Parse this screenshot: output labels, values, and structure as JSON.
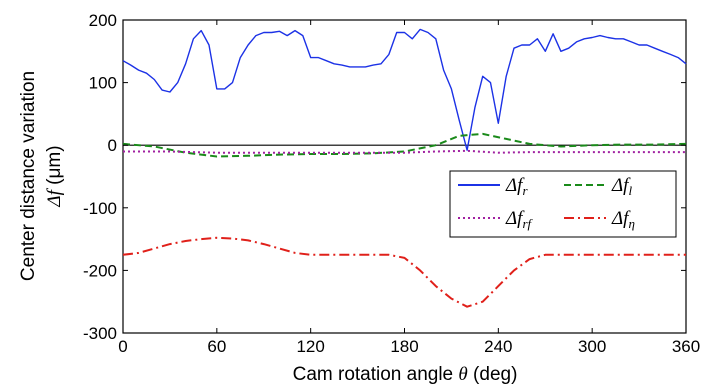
{
  "chart_data": {
    "type": "line",
    "xlabel_main": "Cam rotation angle ",
    "xlabel_symbol": "θ",
    "xlabel_unit": " (deg)",
    "ylabel_line1": "Center distance variation",
    "ylabel_symbol": "Δf",
    "ylabel_unit": " (μm)",
    "xlim": [
      0,
      360
    ],
    "ylim": [
      -300,
      200
    ],
    "xticks": [
      "0",
      "60",
      "120",
      "180",
      "240",
      "300",
      "360"
    ],
    "yticks": [
      "200",
      "100",
      "0",
      "-100",
      "-200",
      "-300"
    ],
    "grid": false,
    "legend_position": "lower-right",
    "reference_line_y": 0,
    "series": [
      {
        "name": "Δf_r",
        "legend_base": "Δf",
        "legend_sub": "r",
        "color": "#1c32e6",
        "dash": "solid",
        "x": [
          0,
          5,
          10,
          15,
          20,
          25,
          30,
          35,
          40,
          45,
          50,
          55,
          60,
          65,
          70,
          75,
          80,
          85,
          90,
          95,
          100,
          105,
          110,
          115,
          120,
          125,
          130,
          135,
          140,
          145,
          150,
          155,
          160,
          165,
          170,
          175,
          180,
          185,
          190,
          195,
          200,
          205,
          210,
          215,
          220,
          225,
          230,
          235,
          240,
          245,
          250,
          255,
          260,
          265,
          270,
          275,
          280,
          285,
          290,
          295,
          300,
          305,
          310,
          315,
          320,
          325,
          330,
          335,
          340,
          345,
          350,
          355,
          360
        ],
        "y": [
          135,
          128,
          120,
          115,
          105,
          88,
          85,
          100,
          130,
          170,
          183,
          160,
          90,
          90,
          100,
          140,
          160,
          175,
          180,
          180,
          182,
          175,
          183,
          175,
          140,
          140,
          135,
          130,
          128,
          125,
          125,
          125,
          128,
          130,
          145,
          180,
          180,
          170,
          185,
          180,
          170,
          120,
          90,
          40,
          -8,
          60,
          110,
          100,
          35,
          110,
          155,
          160,
          160,
          170,
          150,
          178,
          150,
          155,
          165,
          170,
          172,
          175,
          172,
          170,
          170,
          165,
          160,
          160,
          155,
          150,
          145,
          140,
          130
        ]
      },
      {
        "name": "Δf_l",
        "legend_base": "Δf",
        "legend_sub": "l",
        "color": "#1a8a1a",
        "dash": "dashed",
        "x": [
          0,
          20,
          40,
          60,
          80,
          100,
          120,
          140,
          160,
          180,
          200,
          215,
          230,
          245,
          260,
          280,
          300,
          320,
          340,
          360
        ],
        "y": [
          2,
          -2,
          -12,
          -18,
          -17,
          -15,
          -14,
          -14,
          -13,
          -10,
          0,
          15,
          18,
          10,
          2,
          -2,
          0,
          1,
          1,
          2
        ]
      },
      {
        "name": "Δf_rf",
        "legend_base": "Δf",
        "legend_sub": "rf",
        "color": "#a020a0",
        "dash": "dotted",
        "x": [
          0,
          30,
          60,
          90,
          120,
          150,
          180,
          200,
          220,
          240,
          260,
          290,
          320,
          360
        ],
        "y": [
          -10,
          -10,
          -12,
          -12,
          -12,
          -12,
          -12,
          -10,
          -9,
          -12,
          -11,
          -11,
          -11,
          -11
        ]
      },
      {
        "name": "Δf_η",
        "legend_base": "Δf",
        "legend_sub": "η",
        "color": "#e0201a",
        "dash": "dashdot",
        "x": [
          0,
          10,
          20,
          30,
          40,
          50,
          60,
          70,
          80,
          90,
          100,
          110,
          120,
          130,
          140,
          150,
          160,
          170,
          180,
          190,
          200,
          210,
          220,
          230,
          240,
          250,
          260,
          270,
          280,
          290,
          300,
          310,
          320,
          330,
          340,
          350,
          360
        ],
        "y": [
          -175,
          -172,
          -165,
          -158,
          -153,
          -150,
          -148,
          -149,
          -152,
          -158,
          -165,
          -172,
          -175,
          -175,
          -175,
          -175,
          -175,
          -175,
          -180,
          -200,
          -225,
          -245,
          -258,
          -250,
          -225,
          -200,
          -182,
          -175,
          -175,
          -175,
          -175,
          -175,
          -175,
          -175,
          -175,
          -175,
          -175
        ]
      }
    ]
  }
}
